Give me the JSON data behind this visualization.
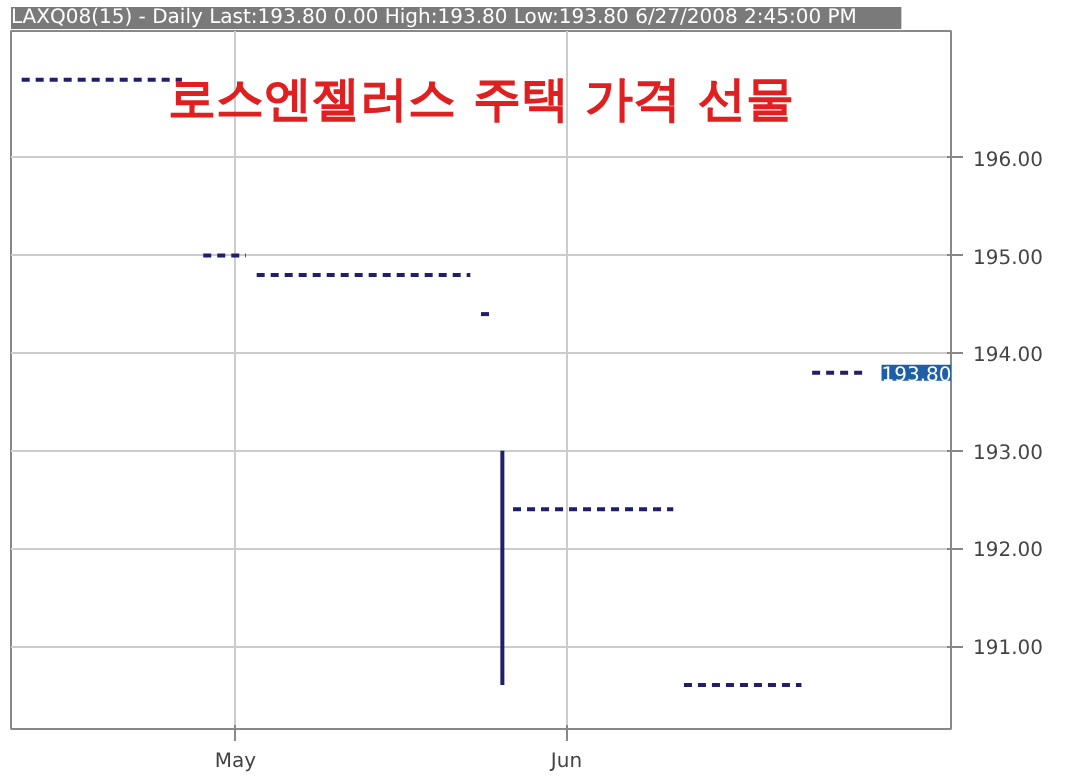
{
  "chart_data": {
    "type": "line",
    "title": "로스엔젤러스 주택 가격 선물",
    "subtitle": "LAXQ08(15) - Daily  Last:193.80   0.00  High:193.80  Low:193.80  6/27/2008  2:45:00 PM",
    "xlim": [
      "2008-04-10",
      "2008-07-07"
    ],
    "xticks": [
      {
        "value": "2008-05-01",
        "label": "May"
      },
      {
        "value": "2008-06-01",
        "label": "Jun"
      }
    ],
    "ylim": [
      190.15,
      197.3
    ],
    "yticks": [
      {
        "value": 191,
        "label": "191.00"
      },
      {
        "value": 192,
        "label": "192.00"
      },
      {
        "value": 193,
        "label": "193.00"
      },
      {
        "value": 194,
        "label": "194.00"
      },
      {
        "value": 195,
        "label": "195.00"
      },
      {
        "value": 196,
        "label": "196.00"
      }
    ],
    "grid": true,
    "line_style": "dashed",
    "series": [
      {
        "color": "#1f1f6b",
        "x": [
          "2008-04-11",
          "2008-04-26"
        ],
        "values": [
          196.8,
          196.8
        ]
      },
      {
        "color": "#1f1f6b",
        "x": [
          "2008-04-28",
          "2008-05-02"
        ],
        "values": [
          195.0,
          195.0
        ]
      },
      {
        "color": "#1f1f6b",
        "x": [
          "2008-05-03",
          "2008-05-23"
        ],
        "values": [
          194.8,
          194.8
        ]
      },
      {
        "color": "#1f1f6b",
        "x": [
          "2008-05-24",
          "2008-05-25"
        ],
        "values": [
          194.4,
          194.4
        ]
      },
      {
        "color": "#1f1f6b",
        "line_style": "solid",
        "x": [
          "2008-05-26",
          "2008-05-26"
        ],
        "values": [
          193.0,
          190.6
        ]
      },
      {
        "color": "#1f1f6b",
        "x": [
          "2008-05-27",
          "2008-06-11"
        ],
        "values": [
          192.4,
          192.4
        ]
      },
      {
        "color": "#1f1f6b",
        "x": [
          "2008-06-12",
          "2008-06-23"
        ],
        "values": [
          190.6,
          190.6
        ]
      },
      {
        "color": "#1f1f6b",
        "x": [
          "2008-06-24",
          "2008-06-29"
        ],
        "values": [
          193.8,
          193.8
        ]
      }
    ],
    "annotations": [
      "193.80"
    ]
  }
}
